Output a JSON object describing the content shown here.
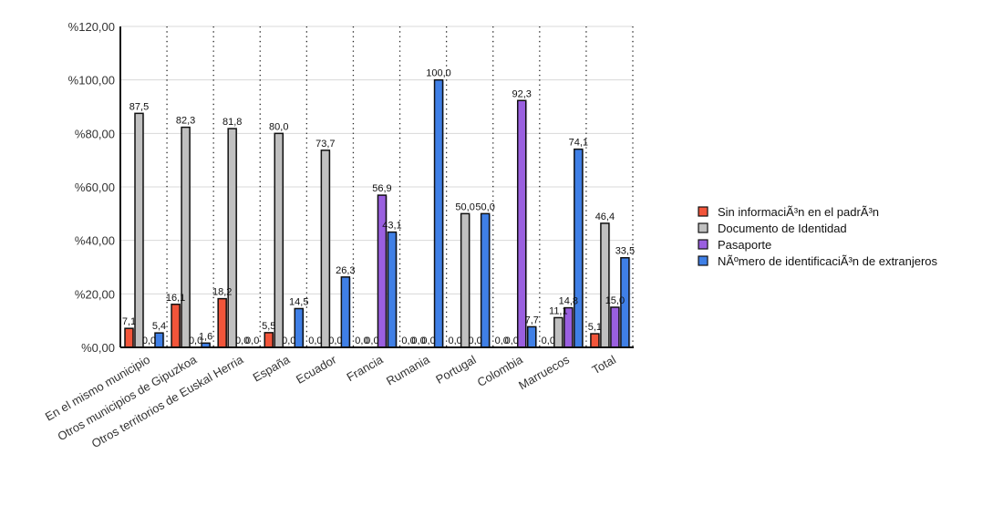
{
  "chart_data": {
    "type": "bar",
    "title": "",
    "xlabel": "",
    "ylabel": "",
    "ylim": [
      0,
      120
    ],
    "yticks": [
      "%0,00",
      "%20,00",
      "%40,00",
      "%60,00",
      "%80,00",
      "%100,00",
      "%120,00"
    ],
    "ytick_values": [
      0,
      20,
      40,
      60,
      80,
      100,
      120
    ],
    "grid": true,
    "legend_position": "right",
    "categories": [
      "En el mismo municipio",
      "Otros municipios de Gipuzkoa",
      "Otros territorios de Euskal Herria",
      "España",
      "Ecuador",
      "Francia",
      "Rumania",
      "Portugal",
      "Colombia",
      "Marruecos",
      "Total"
    ],
    "series": [
      {
        "name": "Sin informaciÃ³n en el padrÃ³n",
        "color": "#f2553a",
        "values": [
          7.1,
          16.1,
          18.2,
          5.5,
          0.0,
          0.0,
          0.0,
          0.0,
          0.0,
          0.0,
          5.1
        ]
      },
      {
        "name": "Documento de Identidad",
        "color": "#c0c0c0",
        "values": [
          87.5,
          82.3,
          81.8,
          80.0,
          73.7,
          0.0,
          0.0,
          50.0,
          0.0,
          11.1,
          46.4
        ]
      },
      {
        "name": "Pasaporte",
        "color": "#9a5fe0",
        "values": [
          0.0,
          0.0,
          0.0,
          0.0,
          0.0,
          56.9,
          0.0,
          0.0,
          92.3,
          14.8,
          15.0
        ]
      },
      {
        "name": "NÃºmero de identificaciÃ³n de extranjeros",
        "color": "#3f7fe6",
        "values": [
          5.4,
          1.6,
          0.0,
          14.5,
          26.3,
          43.1,
          100.0,
          50.0,
          7.7,
          74.1,
          33.5
        ]
      }
    ]
  }
}
